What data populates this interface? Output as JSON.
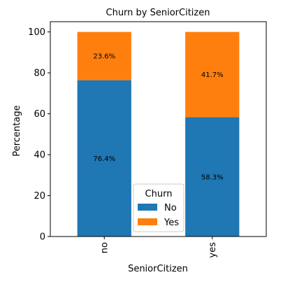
{
  "chart_data": {
    "type": "bar",
    "stacked": true,
    "title": "Churn by SeniorCitizen",
    "xlabel": "SeniorCitizen",
    "ylabel": "Percentage",
    "categories": [
      "no",
      "yes"
    ],
    "series": [
      {
        "name": "No",
        "color": "#1f77b4",
        "values": [
          76.4,
          58.3
        ],
        "labels": [
          "76.4%",
          "58.3%"
        ]
      },
      {
        "name": "Yes",
        "color": "#ff7f0e",
        "values": [
          23.6,
          41.7
        ],
        "labels": [
          "23.6%",
          "41.7%"
        ]
      }
    ],
    "ylim": [
      0,
      105
    ],
    "yticks": [
      0,
      20,
      40,
      60,
      80,
      100
    ],
    "grid": false,
    "legend": {
      "title": "Churn",
      "placement": "lower-center"
    }
  }
}
